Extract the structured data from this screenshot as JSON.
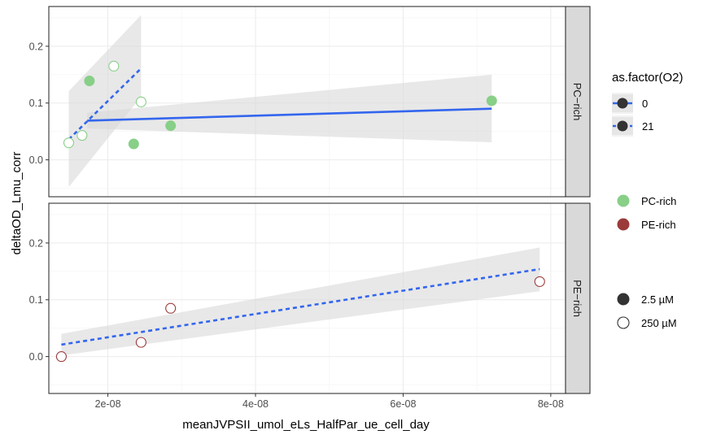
{
  "chart_data": {
    "type": "scatter",
    "xlabel": "meanJVPSII_umol_eLs_HalfPar_ue_cell_day",
    "ylabel": "deltaOD_Lmu_corr",
    "xlim": [
      1.2e-08,
      8.2e-08
    ],
    "ylim": [
      -0.065,
      0.27
    ],
    "x_ticks": [
      2e-08,
      4e-08,
      6e-08,
      8e-08
    ],
    "x_tick_labels": [
      "2e-08",
      "4e-08",
      "6e-08",
      "8e-08"
    ],
    "y_ticks": [
      0.0,
      0.1,
      0.2
    ],
    "y_tick_labels": [
      "0.0",
      "0.1",
      "0.2"
    ],
    "grid": true,
    "legend_position": "right",
    "panels": [
      {
        "strip_label": "PC−rich",
        "points": [
          {
            "x": 1.75e-08,
            "y": 0.139,
            "filled": true
          },
          {
            "x": 2.08e-08,
            "y": 0.165,
            "filled": false
          },
          {
            "x": 2.45e-08,
            "y": 0.102,
            "filled": false
          },
          {
            "x": 2.35e-08,
            "y": 0.028,
            "filled": true
          },
          {
            "x": 2.85e-08,
            "y": 0.06,
            "filled": true
          },
          {
            "x": 1.47e-08,
            "y": 0.03,
            "filled": false
          },
          {
            "x": 1.65e-08,
            "y": 0.043,
            "filled": false
          },
          {
            "x": 7.2e-08,
            "y": 0.104,
            "filled": true
          }
        ],
        "fits": [
          {
            "o2": "0",
            "x": [
              1.72e-08,
              7.2e-08
            ],
            "y": [
              0.069,
              0.09
            ],
            "band_lo": [
              0.055,
              0.031
            ],
            "band_hi": [
              0.083,
              0.15
            ]
          },
          {
            "o2": "21",
            "x": [
              1.47e-08,
              2.45e-08
            ],
            "y": [
              0.036,
              0.161
            ],
            "band_lo": [
              -0.048,
              0.111
            ],
            "band_hi": [
              0.121,
              0.255
            ]
          }
        ]
      },
      {
        "strip_label": "PE−rich",
        "points": [
          {
            "x": 1.37e-08,
            "y": 0.0,
            "filled": false
          },
          {
            "x": 2.45e-08,
            "y": 0.025,
            "filled": false
          },
          {
            "x": 2.85e-08,
            "y": 0.085,
            "filled": false
          },
          {
            "x": 7.85e-08,
            "y": 0.132,
            "filled": false
          }
        ],
        "fits": [
          {
            "o2": "21",
            "x": [
              1.37e-08,
              7.85e-08
            ],
            "y": [
              0.021,
              0.154
            ],
            "band_lo": [
              0.002,
              0.115
            ],
            "band_hi": [
              0.04,
              0.192
            ]
          }
        ]
      }
    ],
    "legend": {
      "o2_title": "as.factor(O2)",
      "o2_entries": [
        "0",
        "21"
      ],
      "type_entries": [
        {
          "label": "PC-rich",
          "color": "#88cf88"
        },
        {
          "label": "PE-rich",
          "color": "#9b3a3a"
        }
      ],
      "conc_entries": [
        {
          "label": "2.5 µM",
          "filled": true
        },
        {
          "label": "250 µM",
          "filled": false
        }
      ]
    },
    "colors": {
      "pc_rich": "#88cf88",
      "pe_rich": "#9b3a3a",
      "fit_line": "#3366ee",
      "band": "#d9d9d9",
      "strip_bg": "#d9d9d9",
      "grid": "#ebebeb"
    }
  }
}
